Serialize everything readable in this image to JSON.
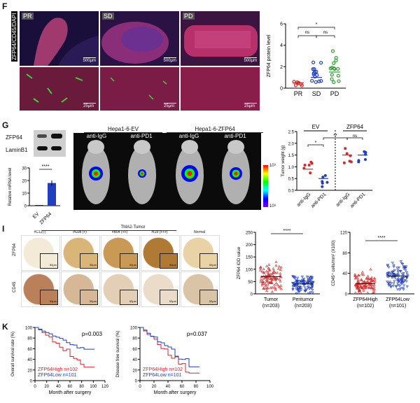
{
  "panels": {
    "F": "F",
    "G": "G",
    "I": "I",
    "K": "K"
  },
  "F": {
    "ylabel_left": "ZFP64/CD45/DAPI",
    "groups": [
      "PR",
      "SD",
      "PD"
    ],
    "scale_top": "500μm",
    "scale_bottom": "25μm",
    "chart": {
      "ylabel": "ZFP64 protein level",
      "yticks": [
        "0",
        "2",
        "4",
        "6"
      ],
      "sig": [
        "ns",
        "ns",
        "*"
      ]
    }
  },
  "G": {
    "blot_labels": [
      "ZFP64",
      "LaminB1"
    ],
    "bar": {
      "ylabel": "Relative mRNA level",
      "yticks": [
        "0",
        "10",
        "20",
        "30"
      ],
      "categories": [
        "EV",
        "ZFP64"
      ],
      "sig": "****"
    },
    "headers": [
      "Hepa1-6-EV",
      "Hepa1-6-ZFP64"
    ],
    "treatments": [
      "anti-IgG",
      "anti-PD1",
      "anti-IgG",
      "anti-PD1"
    ],
    "colorbar": {
      "top": "10⁹",
      "bottom": "10⁸"
    },
    "tumor": {
      "ylabel": "Tumor weight (g)",
      "yticks": [
        "0.0",
        "0.5",
        "1.0",
        "1.5",
        "2.0",
        "2.5"
      ],
      "groups": [
        "EV",
        "ZFP64"
      ],
      "categories": [
        "anti-IgG",
        "anti-PD1",
        "anti-IgG",
        "anti-PD1"
      ],
      "sig": [
        "*",
        "**",
        "ns"
      ]
    }
  },
  "I": {
    "title": "TMA2-Tumor",
    "columns": [
      "#C12(-)",
      "#G08 (+)",
      "#B04 (++)",
      "#I18 (+++)",
      "Normal"
    ],
    "rows": [
      "ZFP64",
      "CD45"
    ],
    "scale": "50μm",
    "iod": {
      "ylabel": "ZFP64 IOD value",
      "yticks": [
        "0",
        "50",
        "100",
        "150",
        "200",
        "250"
      ],
      "categories": [
        "Tumor",
        "Peritumor"
      ],
      "n": [
        "(n=203)",
        "(n=203)"
      ],
      "sig": "****"
    },
    "cd45": {
      "ylabel": "CD45⁺ cells/mm² (X100)",
      "yticks": [
        "0",
        "40",
        "80",
        "120"
      ],
      "categories": [
        "ZFP64High",
        "ZFP64Low"
      ],
      "n": [
        "(n=102)",
        "(n=101)"
      ],
      "sig": "****"
    }
  },
  "K": {
    "os": {
      "ylabel": "Overall survival rate (%)",
      "p": "p=0.003",
      "xlabel": "Month after surgery",
      "xticks": [
        "0",
        "20",
        "40",
        "60",
        "80",
        "100",
        "120"
      ],
      "yticks": [
        "0",
        "20",
        "40",
        "60",
        "80",
        "100"
      ],
      "legend": [
        "ZFP64High n=102",
        "ZFP64Low n=101"
      ]
    },
    "dfs": {
      "ylabel": "Disease free survival (%)",
      "p": "p=0.037",
      "xlabel": "Month after surgery",
      "xticks": [
        "0",
        "20",
        "40",
        "60",
        "80",
        "100"
      ],
      "yticks": [
        "0",
        "20",
        "40",
        "60",
        "80",
        "100"
      ],
      "legend": [
        "ZFP64High n=102",
        "ZFP64Low n=101"
      ]
    }
  },
  "colors": {
    "red": "#d62728",
    "blue": "#1f3fbf",
    "green": "#2ca02c",
    "navy": "#1a237e"
  }
}
